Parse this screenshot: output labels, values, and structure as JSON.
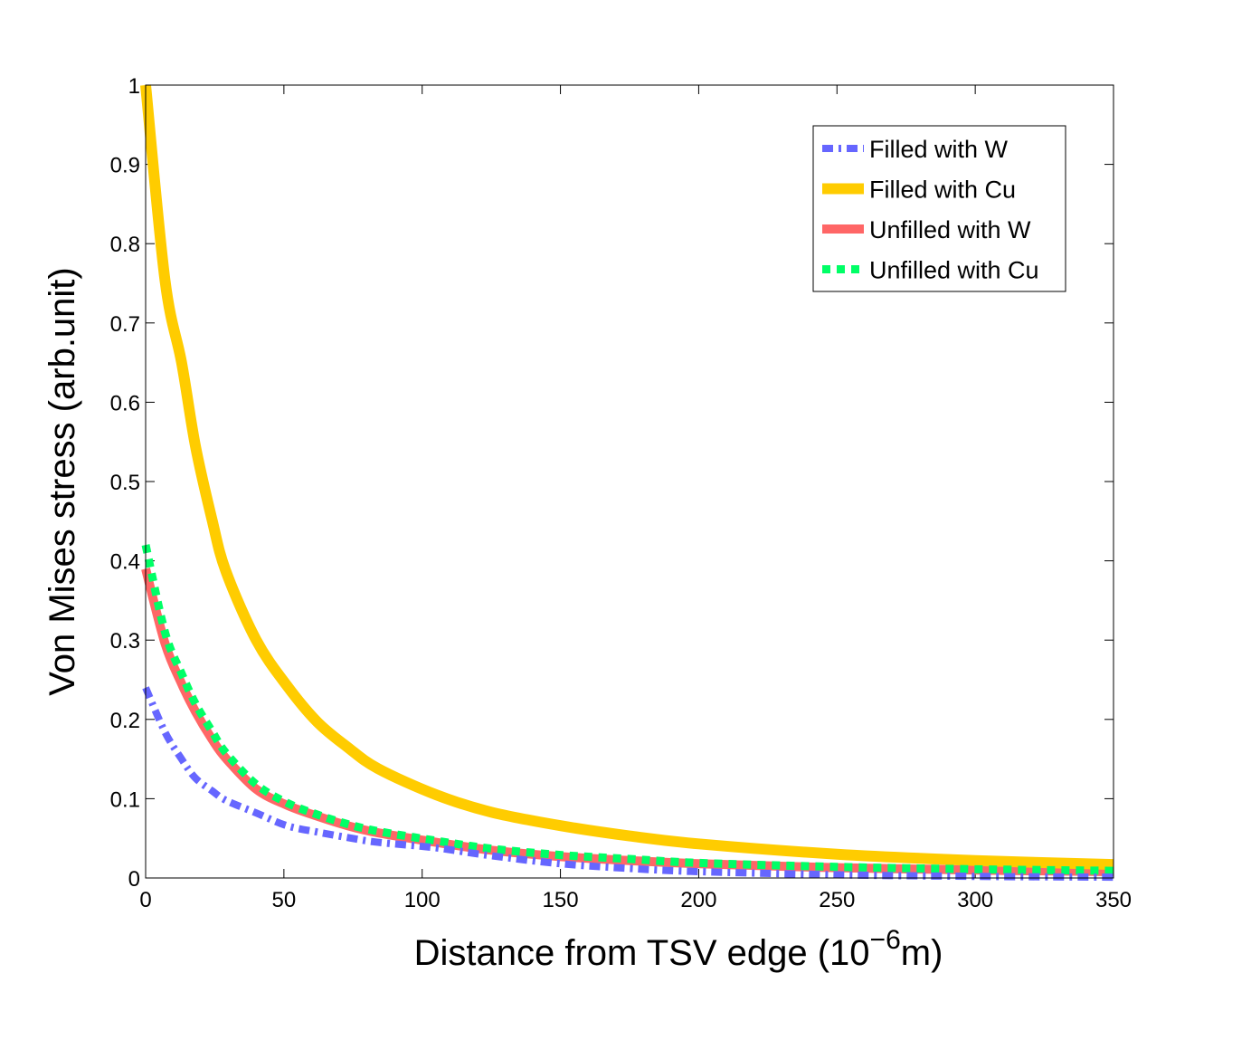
{
  "chart_data": {
    "type": "line",
    "title": "",
    "xlabel": "Distance from TSV edge (10",
    "xlabel_sup": "−6",
    "xlabel_end": "m)",
    "ylabel": "Von Mises stress (arb.unit)",
    "xlim": [
      0,
      350
    ],
    "ylim": [
      0,
      1
    ],
    "xticks": [
      "0",
      "50",
      "100",
      "150",
      "200",
      "250",
      "300",
      "350"
    ],
    "xtick_values": [
      0,
      50,
      100,
      150,
      200,
      250,
      300,
      350
    ],
    "yticks": [
      "0",
      "0.1",
      "0.2",
      "0.3",
      "0.4",
      "0.5",
      "0.6",
      "0.7",
      "0.8",
      "0.9",
      "1"
    ],
    "ytick_values": [
      0,
      0.1,
      0.2,
      0.3,
      0.4,
      0.5,
      0.6,
      0.7,
      0.8,
      0.9,
      1
    ],
    "grid": false,
    "legend_position": "top-right",
    "x": [
      0,
      7,
      13,
      18,
      24,
      29,
      40,
      51,
      62,
      73,
      84,
      105,
      125,
      150,
      175,
      200,
      250,
      300,
      350
    ],
    "series": [
      {
        "name": "Filled with W",
        "color": "#6666ff",
        "style": "dash-dot",
        "values": [
          0.24,
          0.184,
          0.15,
          0.126,
          0.11,
          0.098,
          0.082,
          0.066,
          0.058,
          0.051,
          0.045,
          0.038,
          0.028,
          0.018,
          0.012,
          0.008,
          0.004,
          0.002,
          0.001
        ]
      },
      {
        "name": "Filled with Cu",
        "color": "#ffcc00",
        "style": "solid",
        "values": [
          1.0,
          0.754,
          0.65,
          0.545,
          0.452,
          0.387,
          0.3,
          0.243,
          0.197,
          0.165,
          0.138,
          0.105,
          0.083,
          0.066,
          0.053,
          0.043,
          0.03,
          0.022,
          0.017
        ]
      },
      {
        "name": "Unfilled with W",
        "color": "#ff6666",
        "style": "solid",
        "values": [
          0.39,
          0.296,
          0.245,
          0.21,
          0.175,
          0.151,
          0.112,
          0.092,
          0.078,
          0.066,
          0.057,
          0.045,
          0.035,
          0.027,
          0.022,
          0.018,
          0.013,
          0.01,
          0.008
        ]
      },
      {
        "name": "Unfilled with Cu",
        "color": "#00ff66",
        "style": "dotted",
        "values": [
          0.42,
          0.31,
          0.258,
          0.22,
          0.185,
          0.158,
          0.118,
          0.095,
          0.08,
          0.068,
          0.059,
          0.047,
          0.037,
          0.029,
          0.024,
          0.019,
          0.014,
          0.011,
          0.009
        ]
      }
    ]
  }
}
